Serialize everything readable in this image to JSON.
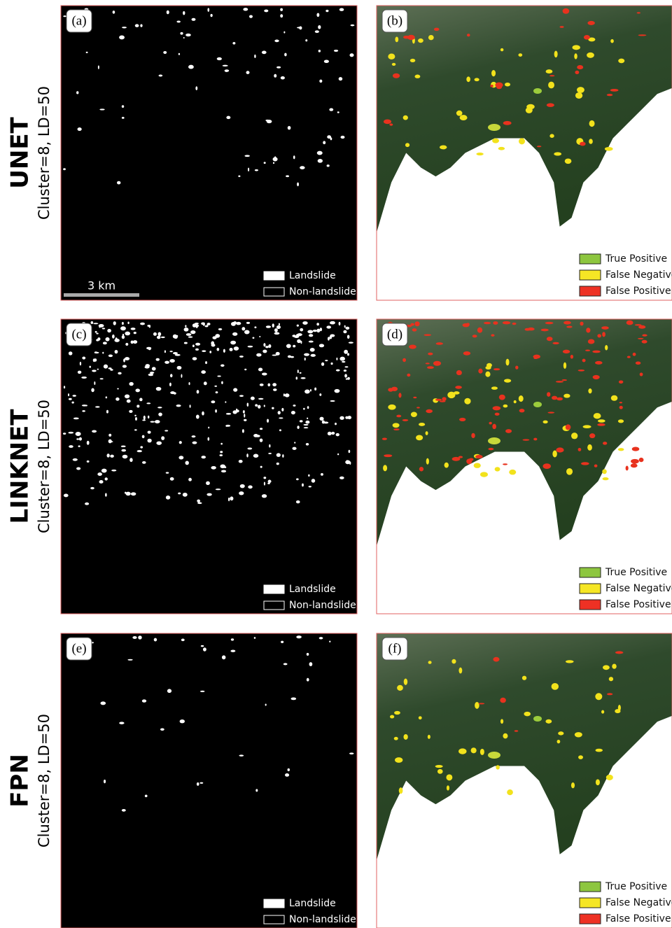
{
  "rows": [
    {
      "model": "UNET",
      "setting": "Cluster=8, LD=50",
      "panels": [
        {
          "label": "(a)",
          "legend": [
            "Landslide",
            "Non-landslide"
          ],
          "scale_bar": "3 km"
        },
        {
          "label": "(b)",
          "legend": [
            "True Positive",
            "False Negative",
            "False Positive"
          ]
        }
      ]
    },
    {
      "model": "LINKNET",
      "setting": "Cluster=8, LD=50",
      "panels": [
        {
          "label": "(c)",
          "legend": [
            "Landslide",
            "Non-landslide"
          ]
        },
        {
          "label": "(d)",
          "legend": [
            "True Positive",
            "False Negative",
            "False Positive"
          ]
        }
      ]
    },
    {
      "model": "FPN",
      "setting": "Cluster=8, LD=50",
      "panels": [
        {
          "label": "(e)",
          "legend": [
            "Landslide",
            "Non-landslide"
          ]
        },
        {
          "label": "(f)",
          "legend": [
            "True Positive",
            "False Negative",
            "False Positive"
          ]
        }
      ]
    }
  ]
}
